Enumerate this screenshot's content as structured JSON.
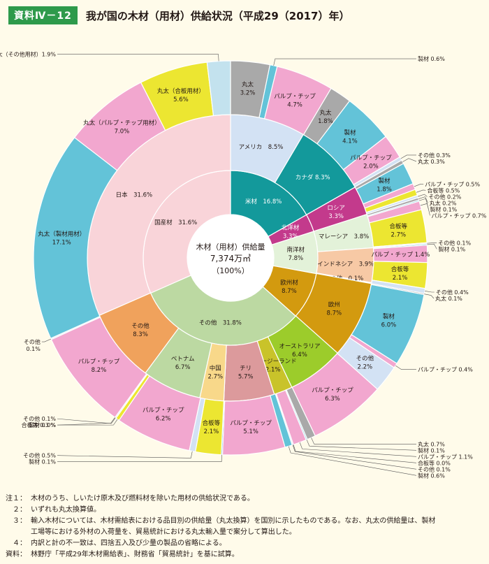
{
  "header": {
    "badge": "資料Ⅳ－12",
    "title": "我が国の木材（用材）供給状況（平成29（2017）年）"
  },
  "chart_data": {
    "type": "pie",
    "center": {
      "line1": "木材（用材）供給量",
      "line2": "7,374万㎥",
      "line3": "（100%）"
    },
    "rings": {
      "inner": [
        {
          "label": "米材",
          "value": 16.8,
          "color": "#13999b",
          "text": "米材　16.8%"
        },
        {
          "label": "北洋材",
          "value": 3.3,
          "color": "#c33a8c",
          "text": "北洋材|3.3%"
        },
        {
          "label": "南洋材",
          "value": 7.8,
          "color": "#e3f2d9",
          "text": "南洋材|7.8%"
        },
        {
          "label": "欧州材",
          "value": 8.7,
          "color": "#d39a0f",
          "text": "欧州材|8.7%"
        },
        {
          "label": "その他",
          "value": 31.8,
          "color": "#bcd9a2",
          "text": "その他　31.8%"
        },
        {
          "label": "国産材",
          "value": 31.6,
          "color": "#f9d4d9",
          "text": "国産材　31.6%"
        }
      ],
      "middle": [
        {
          "label": "アメリカ",
          "value": 8.5,
          "color": "#d3e2f4",
          "text": "アメリカ　8.5%"
        },
        {
          "label": "カナダ",
          "value": 8.3,
          "color": "#13999b",
          "text": "カナダ 8.3%"
        },
        {
          "label": "ロシア",
          "value": 3.3,
          "color": "#c33a8c",
          "text": "ロシア|3.3%"
        },
        {
          "label": "マレーシア",
          "value": 3.8,
          "color": "#e3f2d9",
          "text": "マレーシア　3.8%"
        },
        {
          "label": "インドネシア",
          "value": 3.9,
          "color": "#f7c9a5",
          "text": "インドネシア　3.9%"
        },
        {
          "label": "その他",
          "value": 0.1,
          "color": "#e3f2d9",
          "text": "その他　0.1%"
        },
        {
          "label": "欧州",
          "value": 8.7,
          "color": "#d39a0f",
          "text": "欧州|8.7%"
        },
        {
          "label": "オーストラリア",
          "value": 6.4,
          "color": "#9ccc2b",
          "text": "オーストラリア|6.4%"
        },
        {
          "label": "ニュージーランド",
          "value": 2.1,
          "color": "#c9c32a",
          "text": "ニュージーランド|2.1%"
        },
        {
          "label": "チリ",
          "value": 5.7,
          "color": "#dc9a9c",
          "text": "チリ|5.7%"
        },
        {
          "label": "中国",
          "value": 2.7,
          "color": "#f8d88a",
          "text": "中国|2.7%"
        },
        {
          "label": "ベトナム",
          "value": 6.7,
          "color": "#bcd9a2",
          "text": "ベトナム|6.7%"
        },
        {
          "label": "その他",
          "value": 8.3,
          "color": "#f0a25c",
          "text": "その他|8.3%"
        },
        {
          "label": "日本",
          "value": 31.6,
          "color": "#f9d4d9",
          "text": "日本　31.6%"
        }
      ],
      "outer": [
        {
          "label": "丸太",
          "value": 3.2,
          "color": "#a9a9a9",
          "text": "丸太|3.2%"
        },
        {
          "label": "製材",
          "value": 0.6,
          "color": "#63c3d8"
        },
        {
          "label": "パルプ・チップ",
          "value": 4.7,
          "color": "#f2a7cf",
          "text": "パルプ・チップ|4.7%"
        },
        {
          "label": "丸太",
          "value": 1.8,
          "color": "#a9a9a9",
          "text": "丸太|1.8%"
        },
        {
          "label": "製材",
          "value": 4.1,
          "color": "#63c3d8",
          "text": "製材|4.1%"
        },
        {
          "label": "パルプ・チップ",
          "value": 2.0,
          "color": "#f2a7cf",
          "text": "パルプ・チップ|2.0%"
        },
        {
          "label": "その他",
          "value": 0.3,
          "color": "#d3e2f4"
        },
        {
          "label": "丸太",
          "value": 0.3,
          "color": "#a9a9a9"
        },
        {
          "label": "製材",
          "value": 1.8,
          "color": "#63c3d8",
          "text": "製材|1.8%"
        },
        {
          "label": "パルプ・チップ",
          "value": 0.5,
          "color": "#f2a7cf"
        },
        {
          "label": "合板等",
          "value": 0.5,
          "color": "#ece631"
        },
        {
          "label": "その他",
          "value": 0.2,
          "color": "#d3e2f4"
        },
        {
          "label": "丸太",
          "value": 0.2,
          "color": "#a9a9a9"
        },
        {
          "label": "製材",
          "value": 0.1,
          "color": "#63c3d8"
        },
        {
          "label": "パルプ・チップ",
          "value": 0.7,
          "color": "#f2a7cf"
        },
        {
          "label": "合板等",
          "value": 2.7,
          "color": "#ece631",
          "text": "合板等|2.7%"
        },
        {
          "label": "その他",
          "value": 0.1,
          "color": "#d3e2f4"
        },
        {
          "label": "製材",
          "value": 0.1,
          "color": "#63c3d8"
        },
        {
          "label": "パルプ・チップ",
          "value": 1.4,
          "color": "#f2a7cf",
          "text": "パルプ・チップ 1.4%"
        },
        {
          "label": "合板等",
          "value": 2.1,
          "color": "#ece631",
          "text": "合板等|2.1%"
        },
        {
          "label": "その他",
          "value": 0.4,
          "color": "#d3e2f4"
        },
        {
          "label": "丸太",
          "value": 0.1,
          "color": "#a9a9a9"
        },
        {
          "label": "製材",
          "value": 6.0,
          "color": "#63c3d8",
          "text": "製材|6.0%"
        },
        {
          "label": "パルプ・チップ",
          "value": 0.4,
          "color": "#f2a7cf"
        },
        {
          "label": "その他",
          "value": 2.2,
          "color": "#d3e2f4",
          "text": "その他|2.2%"
        },
        {
          "label": "パルプ・チップ",
          "value": 6.3,
          "color": "#f2a7cf",
          "text": "パルプ・チップ|6.3%"
        },
        {
          "label": "丸太",
          "value": 0.7,
          "color": "#a9a9a9"
        },
        {
          "label": "製材",
          "value": 0.1,
          "color": "#63c3d8"
        },
        {
          "label": "パルプ・チップ",
          "value": 1.1,
          "color": "#f2a7cf"
        },
        {
          "label": "合板等",
          "value": 0.0,
          "color": "#ece631"
        },
        {
          "label": "その他",
          "value": 0.1,
          "color": "#d3e2f4"
        },
        {
          "label": "製材",
          "value": 0.6,
          "color": "#63c3d8"
        },
        {
          "label": "パルプ・チップ",
          "value": 5.1,
          "color": "#f2a7cf",
          "text": "パルプ・チップ|5.1%"
        },
        {
          "label": "製材",
          "value": 0.1,
          "color": "#63c3d8"
        },
        {
          "label": "合板等",
          "value": 2.1,
          "color": "#ece631",
          "text": "合板等|2.1%"
        },
        {
          "label": "その他",
          "value": 0.5,
          "color": "#d3e2f4"
        },
        {
          "label": "パルプ・チップ",
          "value": 6.2,
          "color": "#f2a7cf",
          "text": "パルプ・チップ|6.2%"
        },
        {
          "label": "合板等",
          "value": 0.3,
          "color": "#ece631"
        },
        {
          "label": "その他",
          "value": 0.1,
          "color": "#d3e2f4"
        },
        {
          "label": "製材",
          "value": 0.0,
          "color": "#63c3d8"
        },
        {
          "label": "パルプ・チップ",
          "value": 8.2,
          "color": "#f2a7cf",
          "text": "パルプ・チップ|8.2%"
        },
        {
          "label": "その他",
          "value": 0.1,
          "color": "#d3e2f4"
        },
        {
          "label": "丸太（製材用材）",
          "value": 17.1,
          "color": "#63c3d8",
          "text": "丸太（製材用材）|17.1%"
        },
        {
          "label": "丸太（パルプ・チップ用材）",
          "value": 7.0,
          "color": "#f2a7cf",
          "text": "丸太（パルプ・チップ用材）|7.0%"
        },
        {
          "label": "丸太（合板用材）",
          "value": 5.6,
          "color": "#ece631",
          "text": "丸太（合板用材）|5.6%"
        },
        {
          "label": "丸太（その他用材）",
          "value": 1.9,
          "color": "#c3e2ee"
        }
      ]
    },
    "callouts": [
      {
        "text": "丸太（その他用材）1.9%",
        "seg": 45
      },
      {
        "text": "製材 0.6%",
        "seg": 1
      },
      {
        "text": "その他 0.3%",
        "seg": 6
      },
      {
        "text": "丸太 0.3%",
        "seg": 7
      },
      {
        "text": "パルプ・チップ 0.5%",
        "seg": 9
      },
      {
        "text": "合板等 0.5%",
        "seg": 10
      },
      {
        "text": "その他 0.2%",
        "seg": 11
      },
      {
        "text": "丸太 0.2%",
        "seg": 12
      },
      {
        "text": "製材 0.1%",
        "seg": 13
      },
      {
        "text": "パルプ・チップ 0.7%",
        "seg": 14
      },
      {
        "text": "その他 0.1%",
        "seg": 16
      },
      {
        "text": "製材 0.1%",
        "seg": 17
      },
      {
        "text": "その他 0.4%",
        "seg": 20
      },
      {
        "text": "丸太 0.1%",
        "seg": 21
      },
      {
        "text": "パルプ・チップ 0.4%",
        "seg": 23
      },
      {
        "text": "丸太 0.7%",
        "seg": 26
      },
      {
        "text": "製材 0.1%",
        "seg": 27
      },
      {
        "text": "パルプ・チップ 1.1%",
        "seg": 28
      },
      {
        "text": "合板等 0.0%",
        "seg": 29
      },
      {
        "text": "その他 0.1%",
        "seg": 30
      },
      {
        "text": "製材 0.6%",
        "seg": 31
      },
      {
        "text": "製材 0.1%",
        "seg": 33
      },
      {
        "text": "その他 0.5%",
        "seg": 35
      },
      {
        "text": "合板等 0.3 %",
        "seg": 37
      },
      {
        "text": "その他 0.1%",
        "seg": 38
      },
      {
        "text": "製材 0.0%",
        "seg": 39
      },
      {
        "text": "その他|0.1%",
        "seg": 41
      }
    ]
  },
  "notes": [
    {
      "label": "注１：",
      "text": "木材のうち、しいたけ原木及び燃料材を除いた用材の供給状況である。"
    },
    {
      "label": "２：",
      "text": "いずれも丸太換算値。"
    },
    {
      "label": "３：",
      "text": "輸入木材については、木材需給表における品目別の供給量（丸太換算）を国別に示したものである。なお、丸太の供給量は、製材"
    },
    {
      "label": "",
      "text": "工場等における外材の入荷量を、貿易統計における丸太輸入量で案分して算出した。"
    },
    {
      "label": "４：",
      "text": "内訳と計の不一致は、四捨五入及び少量の製品の省略による。"
    },
    {
      "label": "資料：",
      "text": "林野庁「平成29年木材需給表」、財務省「貿易統計」を基に試算。"
    }
  ]
}
